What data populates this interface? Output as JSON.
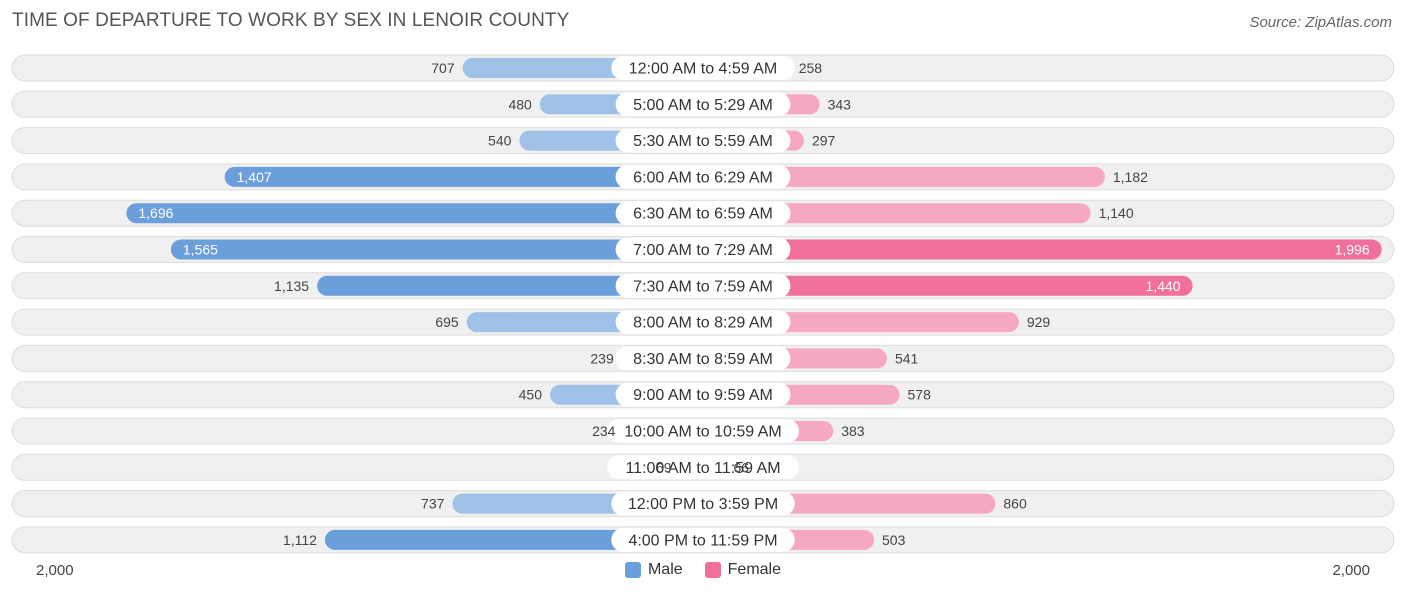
{
  "header": {
    "title": "TIME OF DEPARTURE TO WORK BY SEX IN LENOIR COUNTY",
    "source": "Source: ZipAtlas.com"
  },
  "colors": {
    "male_light": "#9fc1e7",
    "male_dark": "#6a9fdc",
    "female_light": "#f6a8c2",
    "female_dark": "#f07099",
    "row_bg": "#f0f0f0",
    "row_border": "#dddddd"
  },
  "chart_data": {
    "type": "bar",
    "orientation": "horizontal-diverging",
    "title": "TIME OF DEPARTURE TO WORK BY SEX IN LENOIR COUNTY",
    "categories": [
      "12:00 AM to 4:59 AM",
      "5:00 AM to 5:29 AM",
      "5:30 AM to 5:59 AM",
      "6:00 AM to 6:29 AM",
      "6:30 AM to 6:59 AM",
      "7:00 AM to 7:29 AM",
      "7:30 AM to 7:59 AM",
      "8:00 AM to 8:29 AM",
      "8:30 AM to 8:59 AM",
      "9:00 AM to 9:59 AM",
      "10:00 AM to 10:59 AM",
      "11:00 AM to 11:59 AM",
      "12:00 PM to 3:59 PM",
      "4:00 PM to 11:59 PM"
    ],
    "series": [
      {
        "name": "Male",
        "values": [
          707,
          480,
          540,
          1407,
          1696,
          1565,
          1135,
          695,
          239,
          450,
          234,
          69,
          737,
          1112
        ],
        "labels": [
          "707",
          "480",
          "540",
          "1,407",
          "1,696",
          "1,565",
          "1,135",
          "695",
          "239",
          "450",
          "234",
          "69",
          "737",
          "1,112"
        ]
      },
      {
        "name": "Female",
        "values": [
          258,
          343,
          297,
          1182,
          1140,
          1996,
          1440,
          929,
          541,
          578,
          383,
          66,
          860,
          503
        ],
        "labels": [
          "258",
          "343",
          "297",
          "1,182",
          "1,140",
          "1,996",
          "1,440",
          "929",
          "541",
          "578",
          "383",
          "66",
          "860",
          "503"
        ]
      }
    ],
    "xlim": [
      -2000,
      2000
    ],
    "axis_labels": {
      "left": "2,000",
      "right": "2,000"
    },
    "legend": [
      "Male",
      "Female"
    ],
    "legend_position": "bottom-center"
  }
}
